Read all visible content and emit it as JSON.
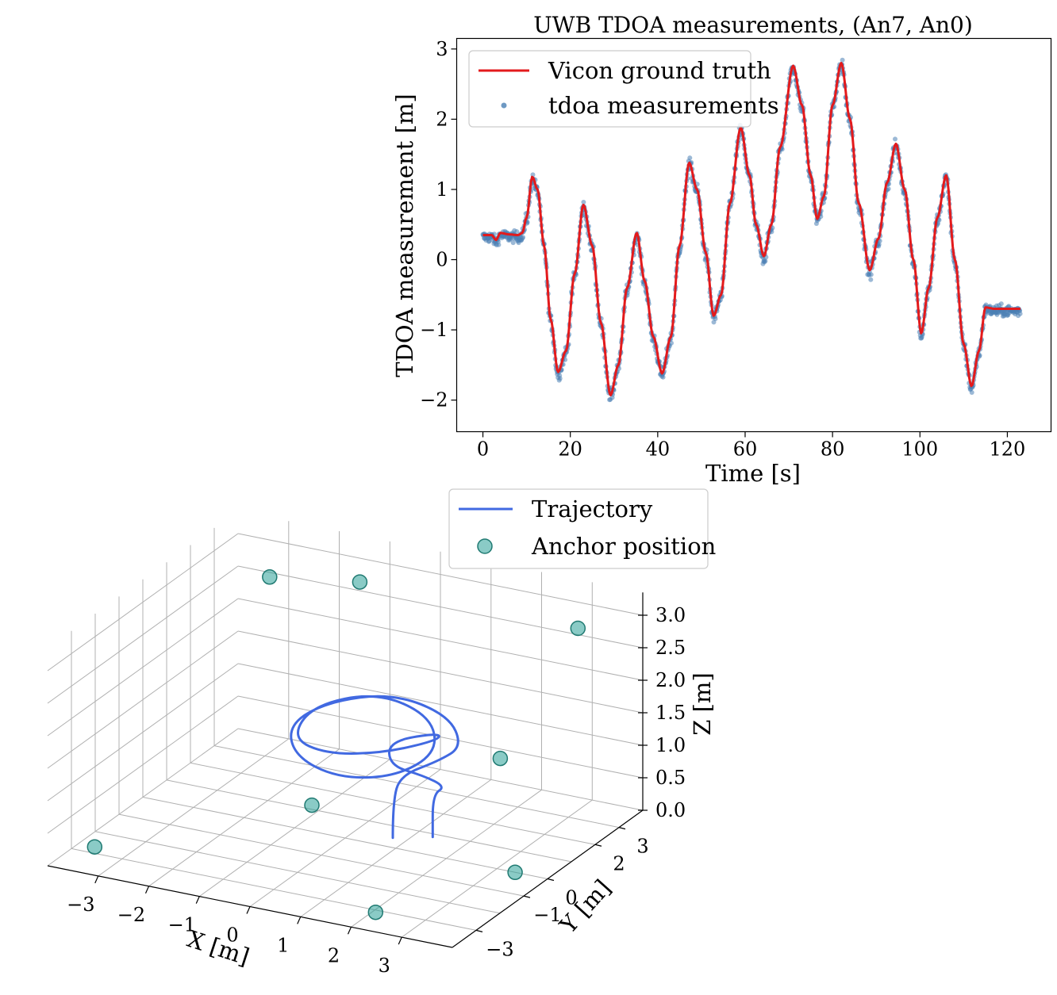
{
  "chart_data": [
    {
      "type": "scatter",
      "title": "UWB TDOA measurements, (An7, An0)",
      "xlabel": "Time [s]",
      "ylabel": "TDOA measurement [m]",
      "xlim": [
        -6,
        130
      ],
      "ylim": [
        -2.45,
        3.15
      ],
      "x_ticks": [
        0,
        20,
        40,
        60,
        80,
        100,
        120
      ],
      "y_ticks": [
        -2,
        -1,
        0,
        1,
        2,
        3
      ],
      "x_tick_labels": [
        "0",
        "20",
        "40",
        "60",
        "80",
        "100",
        "120"
      ],
      "y_tick_labels": [
        "−2",
        "−1",
        "0",
        "1",
        "2",
        "3"
      ],
      "grid": false,
      "legend_position": "top-left",
      "series": [
        {
          "name": "Vicon ground truth",
          "kind": "line",
          "color": "#e31a1c",
          "x": [
            0,
            2,
            3,
            4,
            6,
            8,
            9,
            10,
            11.3,
            12.5,
            14,
            15.5,
            17.2,
            19,
            21,
            23,
            25,
            27,
            29.2,
            31,
            33,
            35.2,
            37,
            39,
            41,
            43,
            45,
            47.2,
            49,
            51,
            52.8,
            54.5,
            56.5,
            59,
            61,
            62.5,
            64.3,
            66,
            68,
            71,
            73,
            75,
            76.5,
            78,
            80,
            82,
            84,
            86,
            88.5,
            90.5,
            92.5,
            94.5,
            96.5,
            98.5,
            100.3,
            102,
            104,
            106,
            108,
            110,
            111.8,
            113.5,
            115,
            117,
            120,
            123
          ],
          "y": [
            0.35,
            0.35,
            0.28,
            0.38,
            0.36,
            0.35,
            0.38,
            0.6,
            1.18,
            1.0,
            0.2,
            -0.85,
            -1.6,
            -1.3,
            -0.2,
            0.78,
            0.2,
            -0.9,
            -1.93,
            -1.5,
            -0.4,
            0.38,
            -0.3,
            -1.1,
            -1.62,
            -1.1,
            0.2,
            1.38,
            1.0,
            0.1,
            -0.8,
            -0.5,
            0.8,
            1.88,
            1.2,
            0.5,
            0.05,
            0.5,
            1.6,
            2.76,
            2.2,
            1.2,
            0.58,
            0.9,
            2.2,
            2.8,
            2.0,
            0.8,
            -0.15,
            0.3,
            1.1,
            1.65,
            1.0,
            0.0,
            -1.05,
            -0.4,
            0.6,
            1.2,
            0.0,
            -1.2,
            -1.8,
            -1.3,
            -0.68,
            -0.7,
            -0.7,
            -0.7
          ]
        },
        {
          "name": "tdoa measurements",
          "kind": "scatter",
          "color": "#4a80b4",
          "note_noise_std_m": 0.05
        }
      ]
    },
    {
      "type": "scatter3d",
      "xlabel": "X [m]",
      "ylabel": "Y [m]",
      "zlabel": "Z [m]",
      "x_ticks": [
        -3,
        -2,
        -1,
        0,
        1,
        2,
        3
      ],
      "y_ticks": [
        -3,
        -1,
        0,
        2,
        3
      ],
      "z_ticks": [
        0.0,
        0.5,
        1.0,
        1.5,
        2.0,
        2.5,
        3.0
      ],
      "x_tick_labels": [
        "−3",
        "−2",
        "−1",
        "0",
        "1",
        "2",
        "3"
      ],
      "y_tick_labels": [
        "−3",
        "−1",
        "0",
        "2",
        "3"
      ],
      "z_tick_labels": [
        "0.0",
        "0.5",
        "1.0",
        "1.5",
        "2.0",
        "2.5",
        "3.0"
      ],
      "legend_position": "top-center",
      "series": [
        {
          "name": "Trajectory",
          "kind": "line",
          "color": "#4169e1",
          "points": [
            [
              0.8,
              0.3,
              0.05
            ],
            [
              0.8,
              0.3,
              0.6
            ],
            [
              0.9,
              0.4,
              1.0
            ],
            [
              1.6,
              0.5,
              1.3
            ],
            [
              1.8,
              1.1,
              1.4
            ],
            [
              1.2,
              1.8,
              1.6
            ],
            [
              0.0,
              2.0,
              1.7
            ],
            [
              -1.1,
              1.6,
              1.5
            ],
            [
              -1.5,
              0.8,
              1.3
            ],
            [
              -1.0,
              0.0,
              1.1
            ],
            [
              0.0,
              -0.3,
              1.0
            ],
            [
              1.0,
              0.0,
              1.1
            ],
            [
              1.4,
              0.9,
              1.3
            ],
            [
              0.8,
              1.9,
              1.5
            ],
            [
              -0.4,
              2.2,
              1.6
            ],
            [
              -1.4,
              1.6,
              1.4
            ],
            [
              -1.3,
              0.5,
              1.2
            ],
            [
              -0.4,
              0.1,
              1.2
            ],
            [
              0.6,
              0.4,
              1.3
            ],
            [
              1.3,
              1.2,
              1.4
            ],
            [
              1.0,
              1.8,
              1.3
            ],
            [
              0.2,
              1.4,
              1.15
            ],
            [
              0.6,
              0.6,
              1.05
            ],
            [
              1.4,
              0.3,
              1.1
            ],
            [
              1.7,
              0.6,
              0.9
            ],
            [
              1.4,
              0.7,
              0.7
            ],
            [
              1.4,
              0.7,
              0.05
            ]
          ]
        },
        {
          "name": "Anchor position",
          "kind": "scatter",
          "color": "#2aa198",
          "points": [
            [
              -3.0,
              3.2,
              2.7
            ],
            [
              -3.4,
              -3.3,
              0.2
            ],
            [
              2.2,
              -3.4,
              0.1
            ],
            [
              3.5,
              -0.3,
              0.1
            ],
            [
              3.0,
              3.4,
              2.8
            ],
            [
              -0.8,
              0.3,
              0.3
            ],
            [
              2.5,
              1.2,
              1.3
            ],
            [
              -1.5,
              3.8,
              2.7
            ]
          ]
        }
      ]
    }
  ]
}
